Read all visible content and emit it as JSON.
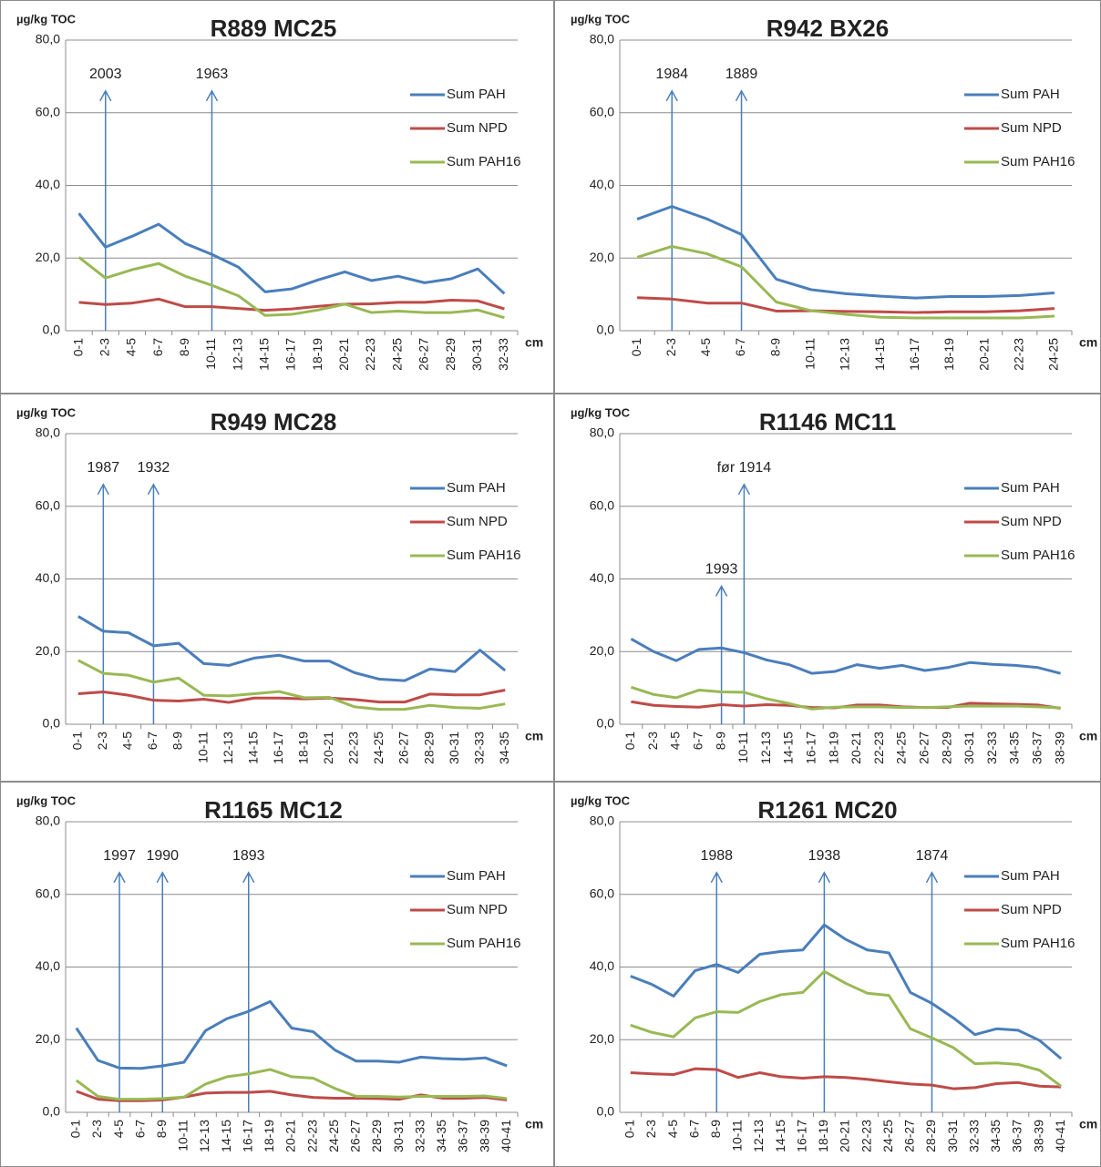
{
  "chart_data": [
    {
      "type": "line",
      "title": "R889 MC25",
      "y_label": "µg/kg TOC",
      "x_label": "cm",
      "categories": [
        "0-1",
        "2-3",
        "4-5",
        "6-7",
        "8-9",
        "10-11",
        "12-13",
        "14-15",
        "16-17",
        "18-19",
        "20-21",
        "22-23",
        "24-25",
        "26-27",
        "28-29",
        "30-31",
        "32-33"
      ],
      "series": [
        {
          "name": "Sum PAH",
          "color": "#4a7ebb",
          "values": [
            32.3,
            23,
            26,
            29.3,
            24,
            21,
            17.5,
            10.7,
            11.5,
            14,
            16.2,
            13.8,
            15,
            13.2,
            14.3,
            17,
            10.2
          ]
        },
        {
          "name": "Sum NPD",
          "color": "#be4b48",
          "values": [
            7.8,
            7.2,
            7.6,
            8.7,
            6.6,
            6.6,
            6.1,
            5.6,
            6,
            6.7,
            7.3,
            7.4,
            7.8,
            7.8,
            8.4,
            8.2,
            6
          ]
        },
        {
          "name": "Sum PAH16",
          "color": "#98b954",
          "values": [
            20.2,
            14.5,
            16.8,
            18.5,
            15,
            12.5,
            9.6,
            4.2,
            4.5,
            5.7,
            7.3,
            5,
            5.4,
            5,
            5,
            5.7,
            3.6
          ]
        }
      ],
      "ylim": [
        0,
        80
      ],
      "yticks": [
        {
          "value": 0,
          "label": "0,0"
        },
        {
          "value": 20,
          "label": "20,0"
        },
        {
          "value": 40,
          "label": "40,0"
        },
        {
          "value": 60,
          "label": "60,0"
        },
        {
          "value": 80,
          "label": "80,0"
        }
      ],
      "grid": true,
      "annotations": [
        {
          "text": "2003",
          "x": "2-3",
          "y": 66
        },
        {
          "text": "1963",
          "x": "10-11",
          "y": 66
        }
      ]
    },
    {
      "type": "line",
      "title": "R942 BX26",
      "y_label": "µg/kg TOC",
      "x_label": "cm",
      "categories": [
        "0-1",
        "2-3",
        "4-5",
        "6-7",
        "8-9",
        "10-11",
        "12-13",
        "14-15",
        "16-17",
        "18-19",
        "20-21",
        "22-23",
        "24-25"
      ],
      "series": [
        {
          "name": "Sum PAH",
          "color": "#4a7ebb",
          "values": [
            30.7,
            34.2,
            30.8,
            26.5,
            14.2,
            11.3,
            10.2,
            9.5,
            9,
            9.4,
            9.4,
            9.7,
            10.4
          ]
        },
        {
          "name": "Sum NPD",
          "color": "#be4b48",
          "values": [
            9.1,
            8.7,
            7.6,
            7.6,
            5.4,
            5.5,
            5.3,
            5.2,
            5,
            5.2,
            5.2,
            5.5,
            6.1
          ]
        },
        {
          "name": "Sum PAH16",
          "color": "#98b954",
          "values": [
            20.2,
            23.2,
            21.2,
            17.6,
            7.9,
            5.5,
            4.5,
            3.7,
            3.5,
            3.5,
            3.5,
            3.5,
            4
          ]
        }
      ],
      "ylim": [
        0,
        80
      ],
      "yticks": [
        {
          "value": 0,
          "label": "0,0"
        },
        {
          "value": 20,
          "label": "20,0"
        },
        {
          "value": 40,
          "label": "40,0"
        },
        {
          "value": 60,
          "label": "60,0"
        },
        {
          "value": 80,
          "label": "80,0"
        }
      ],
      "grid": true,
      "annotations": [
        {
          "text": "1984",
          "x": "2-3",
          "y": 66
        },
        {
          "text": "1889",
          "x": "6-7",
          "y": 66
        }
      ]
    },
    {
      "type": "line",
      "title": "R949 MC28",
      "y_label": "µg/kg TOC",
      "x_label": "cm",
      "categories": [
        "0-1",
        "2-3",
        "4-5",
        "6-7",
        "8-9",
        "10-11",
        "12-13",
        "14-15",
        "16-17",
        "18-19",
        "20-21",
        "22-23",
        "24-25",
        "26-27",
        "28-29",
        "30-31",
        "32-33",
        "34-35"
      ],
      "series": [
        {
          "name": "Sum PAH",
          "color": "#4a7ebb",
          "values": [
            29.7,
            25.6,
            25.2,
            21.6,
            22.3,
            16.7,
            16.2,
            18.2,
            19,
            17.4,
            17.4,
            14.2,
            12.4,
            12,
            15.2,
            14.5,
            20.4,
            14.8
          ]
        },
        {
          "name": "Sum NPD",
          "color": "#be4b48",
          "values": [
            8.4,
            8.9,
            8,
            6.6,
            6.4,
            6.9,
            6,
            7.2,
            7.2,
            7,
            7.2,
            6.8,
            6.1,
            6.1,
            8.3,
            8.1,
            8.1,
            9.4
          ]
        },
        {
          "name": "Sum PAH16",
          "color": "#98b954",
          "values": [
            17.6,
            14,
            13.5,
            11.6,
            12.7,
            8,
            7.8,
            8.4,
            9,
            7.3,
            7.4,
            4.8,
            4.1,
            4.1,
            5.2,
            4.6,
            4.4,
            5.6
          ]
        }
      ],
      "ylim": [
        0,
        80
      ],
      "yticks": [
        {
          "value": 0,
          "label": "0,0"
        },
        {
          "value": 20,
          "label": "20,0"
        },
        {
          "value": 40,
          "label": "40,0"
        },
        {
          "value": 60,
          "label": "60,0"
        },
        {
          "value": 80,
          "label": "80,0"
        }
      ],
      "grid": true,
      "annotations": [
        {
          "text": "1987",
          "x": "2-3",
          "y": 66
        },
        {
          "text": "1932",
          "x": "6-7",
          "y": 66
        }
      ]
    },
    {
      "type": "line",
      "title": "R1146 MC11",
      "y_label": "µg/kg TOC",
      "x_label": "cm",
      "categories": [
        "0-1",
        "2-3",
        "4-5",
        "6-7",
        "8-9",
        "10-11",
        "12-13",
        "14-15",
        "16-17",
        "18-19",
        "20-21",
        "22-23",
        "24-25",
        "26-27",
        "28-29",
        "30-31",
        "32-33",
        "34-35",
        "36-37",
        "38-39"
      ],
      "series": [
        {
          "name": "Sum PAH",
          "color": "#4a7ebb",
          "values": [
            23.5,
            20,
            17.5,
            20.6,
            21,
            19.7,
            17.7,
            16.4,
            14,
            14.5,
            16.4,
            15.4,
            16.2,
            14.8,
            15.6,
            17,
            16.5,
            16.2,
            15.6,
            14
          ]
        },
        {
          "name": "Sum NPD",
          "color": "#be4b48",
          "values": [
            6.2,
            5.2,
            4.9,
            4.7,
            5.4,
            5,
            5.4,
            5.2,
            4.6,
            4.5,
            5.3,
            5.3,
            4.8,
            4.6,
            4.6,
            5.8,
            5.6,
            5.5,
            5.3,
            4.4
          ]
        },
        {
          "name": "Sum PAH16",
          "color": "#98b954",
          "values": [
            10.2,
            8.2,
            7.3,
            9.4,
            8.9,
            8.8,
            7,
            5.7,
            4.2,
            4.7,
            4.8,
            4.8,
            4.6,
            4.6,
            4.8,
            5,
            5,
            5,
            4.8,
            4.5
          ]
        }
      ],
      "ylim": [
        0,
        80
      ],
      "yticks": [
        {
          "value": 0,
          "label": "0,0"
        },
        {
          "value": 20,
          "label": "20,0"
        },
        {
          "value": 40,
          "label": "40,0"
        },
        {
          "value": 60,
          "label": "60,0"
        },
        {
          "value": 80,
          "label": "80,0"
        }
      ],
      "grid": true,
      "annotations": [
        {
          "text": "1993",
          "x": "8-9",
          "y": 38
        },
        {
          "text": "før 1914",
          "x": "10-11",
          "y": 66
        }
      ]
    },
    {
      "type": "line",
      "title": "R1165 MC12",
      "y_label": "µg/kg TOC",
      "x_label": "cm",
      "categories": [
        "0-1",
        "2-3",
        "4-5",
        "6-7",
        "8-9",
        "10-11",
        "12-13",
        "14-15",
        "16-17",
        "18-19",
        "20-21",
        "22-23",
        "24-25",
        "26-27",
        "28-29",
        "30-31",
        "32-33",
        "34-35",
        "36-37",
        "38-39",
        "40-41"
      ],
      "series": [
        {
          "name": "Sum PAH",
          "color": "#4a7ebb",
          "values": [
            23.2,
            14.3,
            12.2,
            12.1,
            12.8,
            13.8,
            22.5,
            25.8,
            27.8,
            30.5,
            23.2,
            22.2,
            17.2,
            14.1,
            14.1,
            13.8,
            15.2,
            14.8,
            14.6,
            15,
            12.8
          ]
        },
        {
          "name": "Sum NPD",
          "color": "#be4b48",
          "values": [
            5.8,
            3.6,
            3.2,
            3.2,
            3.4,
            4.2,
            5.3,
            5.5,
            5.5,
            5.8,
            4.8,
            4.1,
            3.9,
            3.9,
            3.8,
            3.6,
            4.8,
            3.9,
            3.9,
            4.1,
            3.4
          ]
        },
        {
          "name": "Sum PAH16",
          "color": "#98b954",
          "values": [
            8.8,
            4.4,
            3.6,
            3.6,
            3.8,
            4.2,
            7.8,
            9.8,
            10.6,
            11.8,
            9.8,
            9.4,
            6.6,
            4.4,
            4.4,
            4.2,
            4.4,
            4.4,
            4.4,
            4.5,
            3.8
          ]
        }
      ],
      "ylim": [
        0,
        80
      ],
      "yticks": [
        {
          "value": 0,
          "label": "0,0"
        },
        {
          "value": 20,
          "label": "20,0"
        },
        {
          "value": 40,
          "label": "40,0"
        },
        {
          "value": 60,
          "label": "60,0"
        },
        {
          "value": 80,
          "label": "80,0"
        }
      ],
      "grid": true,
      "annotations": [
        {
          "text": "1997",
          "x": "4-5",
          "y": 66
        },
        {
          "text": "1990",
          "x": "8-9",
          "y": 66
        },
        {
          "text": "1893",
          "x": "16-17",
          "y": 66
        }
      ]
    },
    {
      "type": "line",
      "title": "R1261 MC20",
      "y_label": "µg/kg TOC",
      "x_label": "cm",
      "categories": [
        "0-1",
        "2-3",
        "4-5",
        "6-7",
        "8-9",
        "10-11",
        "12-13",
        "14-15",
        "16-17",
        "18-19",
        "20-21",
        "22-23",
        "24-25",
        "26-27",
        "28-29",
        "30-31",
        "32-33",
        "34-35",
        "36-37",
        "38-39",
        "40-41"
      ],
      "series": [
        {
          "name": "Sum PAH",
          "color": "#4a7ebb",
          "values": [
            37.5,
            35.2,
            32,
            39,
            40.7,
            38.5,
            43.5,
            44.3,
            44.7,
            51.6,
            47.6,
            44.7,
            43.9,
            33,
            30,
            26,
            21.4,
            23,
            22.6,
            19.8,
            14.8
          ]
        },
        {
          "name": "Sum NPD",
          "color": "#be4b48",
          "values": [
            10.9,
            10.6,
            10.4,
            12,
            11.8,
            9.6,
            10.9,
            9.8,
            9.4,
            9.8,
            9.6,
            9.1,
            8.4,
            7.8,
            7.5,
            6.5,
            6.8,
            7.9,
            8.2,
            7.2,
            7
          ]
        },
        {
          "name": "Sum PAH16",
          "color": "#98b954",
          "values": [
            24,
            22,
            20.8,
            26,
            27.7,
            27.5,
            30.5,
            32.4,
            33,
            38.8,
            35.5,
            32.8,
            32.2,
            23,
            20.5,
            17.8,
            13.4,
            13.6,
            13.2,
            11.6,
            7.2
          ]
        }
      ],
      "ylim": [
        0,
        80
      ],
      "yticks": [
        {
          "value": 0,
          "label": "0,0"
        },
        {
          "value": 20,
          "label": "20,0"
        },
        {
          "value": 40,
          "label": "40,0"
        },
        {
          "value": 60,
          "label": "60,0"
        },
        {
          "value": 80,
          "label": "80,0"
        }
      ],
      "grid": true,
      "annotations": [
        {
          "text": "1988",
          "x": "8-9",
          "y": 66
        },
        {
          "text": "1938",
          "x": "18-19",
          "y": 66
        },
        {
          "text": "1874",
          "x": "28-29",
          "y": 66
        }
      ]
    }
  ]
}
